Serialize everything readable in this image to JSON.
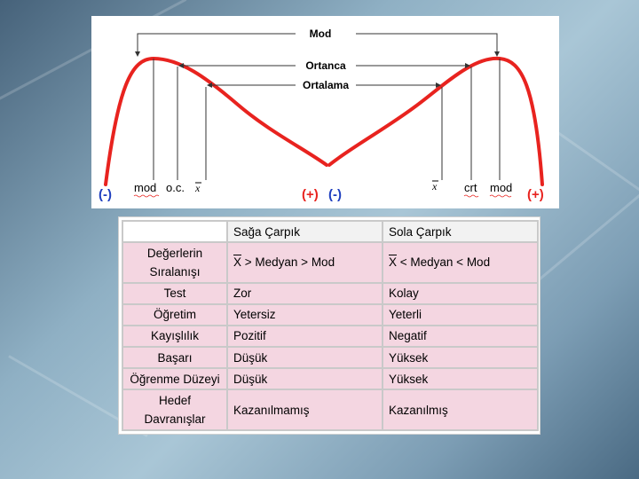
{
  "chart": {
    "labels": {
      "mod": "Mod",
      "ortanca": "Ortanca",
      "ortalama": "Ortalama"
    },
    "bottom": {
      "neg_left": "(-)",
      "mod_left": "mod",
      "oc_left": "o.c.",
      "xbar_left": "x",
      "pos_mid": "(+)",
      "neg_mid": "(-)",
      "xbar_right": "x",
      "crt_right": "crt",
      "mod_right": "mod",
      "pos_right": "(+)"
    },
    "colors": {
      "curve": "#e8231f",
      "sign": "#1f3fbf",
      "sign_pos": "#e8231f"
    }
  },
  "table": {
    "headers": [
      "",
      "Sağa Çarpık",
      "Sola Çarpık"
    ],
    "rows": [
      {
        "label": "Değerlerin Sıralanışı",
        "right": [
          "X",
          " > Medyan > Mod"
        ],
        "left": [
          "X",
          " < Medyan < Mod"
        ]
      },
      {
        "label": "Test",
        "right": "Zor",
        "left": "Kolay"
      },
      {
        "label": "Öğretim",
        "right": "Yetersiz",
        "left": "Yeterli"
      },
      {
        "label": "Kayışlılık",
        "right": "Pozitif",
        "left": "Negatif"
      },
      {
        "label": "Başarı",
        "right": "Düşük",
        "left": "Yüksek"
      },
      {
        "label": "Öğrenme Düzeyi",
        "right": "Düşük",
        "left": "Yüksek"
      },
      {
        "label": "Hedef Davranışlar",
        "right": "Kazanılmamış",
        "left": "Kazanılmış"
      }
    ]
  }
}
